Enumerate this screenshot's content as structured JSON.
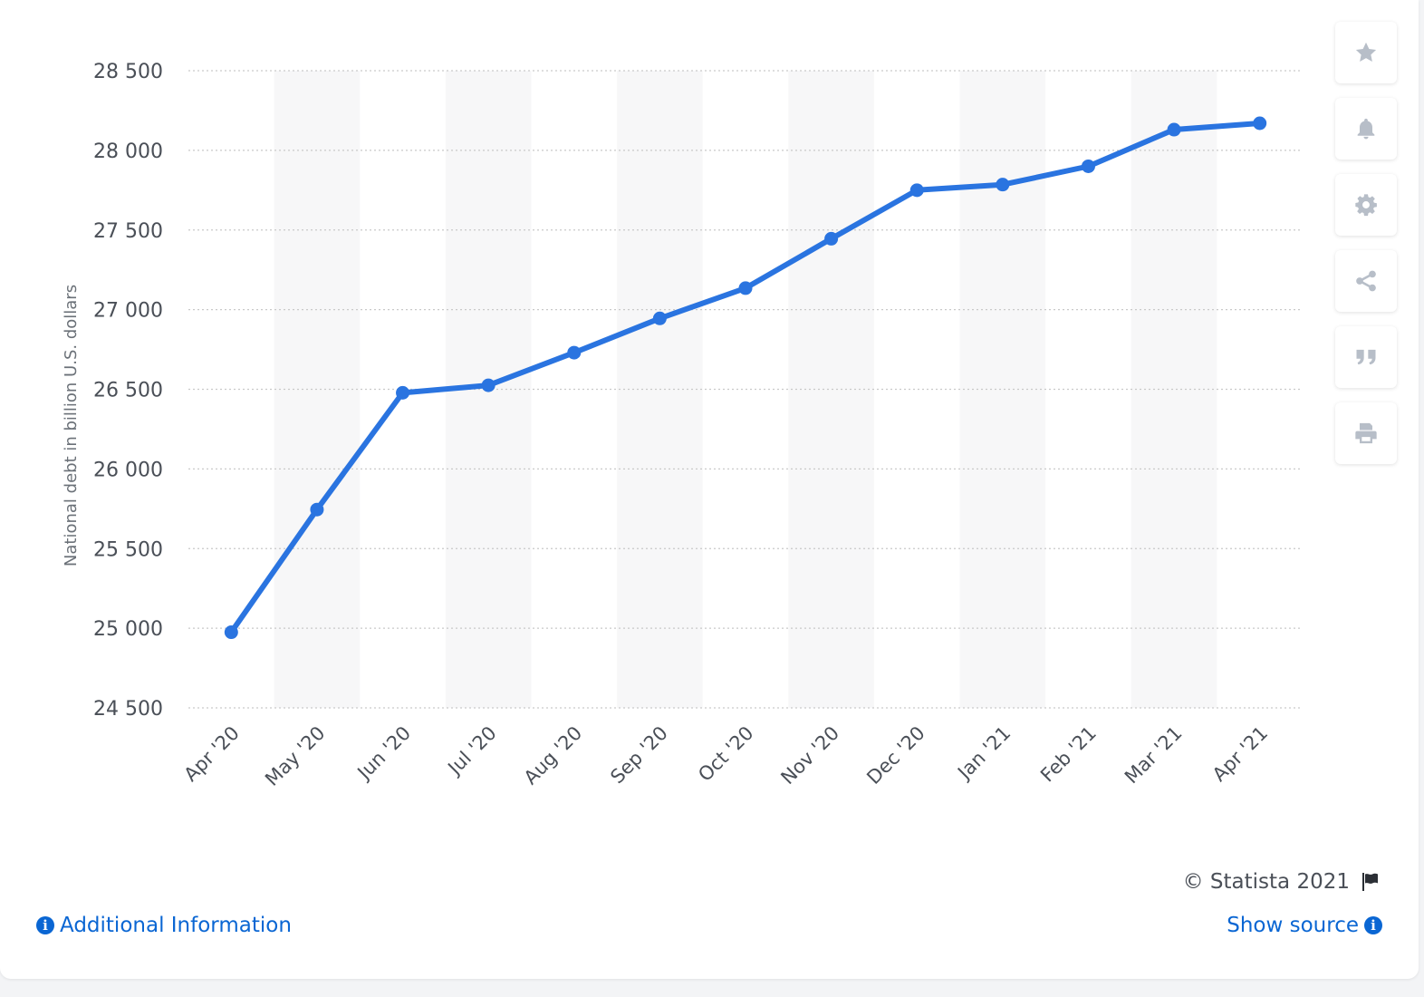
{
  "colors": {
    "line": "#2a74e0",
    "band": "#f7f7f8",
    "grid": "#c9c9c9",
    "tick_text": "#4a4f57",
    "axis_title": "#6b7178",
    "icon": "#b7bec8",
    "link": "#0a66d3"
  },
  "chart_data": {
    "type": "line",
    "title": "",
    "xlabel": "",
    "ylabel": "National debt in billion U.S. dollars",
    "categories": [
      "Apr '20",
      "May '20",
      "Jun '20",
      "Jul '20",
      "Aug '20",
      "Sep '20",
      "Oct '20",
      "Nov '20",
      "Dec '20",
      "Jan '21",
      "Feb '21",
      "Mar '21",
      "Apr '21"
    ],
    "series": [
      {
        "values": [
          24975,
          25745,
          26478,
          26525,
          26730,
          26945,
          27135,
          27445,
          27750,
          27785,
          27900,
          28130,
          28170
        ]
      }
    ],
    "ylim": [
      24500,
      28500
    ],
    "yticks": [
      24500,
      25000,
      25500,
      26000,
      26500,
      27000,
      27500,
      28000,
      28500
    ],
    "ytick_labels": [
      "24 500",
      "25 000",
      "25 500",
      "26 000",
      "26 500",
      "27 000",
      "27 500",
      "28 000",
      "28 500"
    ],
    "grid": true,
    "legend": "none"
  },
  "toolbar": {
    "items": [
      {
        "icon": "star-icon"
      },
      {
        "icon": "bell-icon"
      },
      {
        "icon": "gear-icon"
      },
      {
        "icon": "share-icon"
      },
      {
        "icon": "quote-icon"
      },
      {
        "icon": "print-icon"
      }
    ]
  },
  "footer": {
    "copyright": "© Statista 2021",
    "flag_icon": "flag-icon",
    "additional_info": "Additional Information",
    "show_source": "Show source",
    "info_glyph": "i"
  }
}
